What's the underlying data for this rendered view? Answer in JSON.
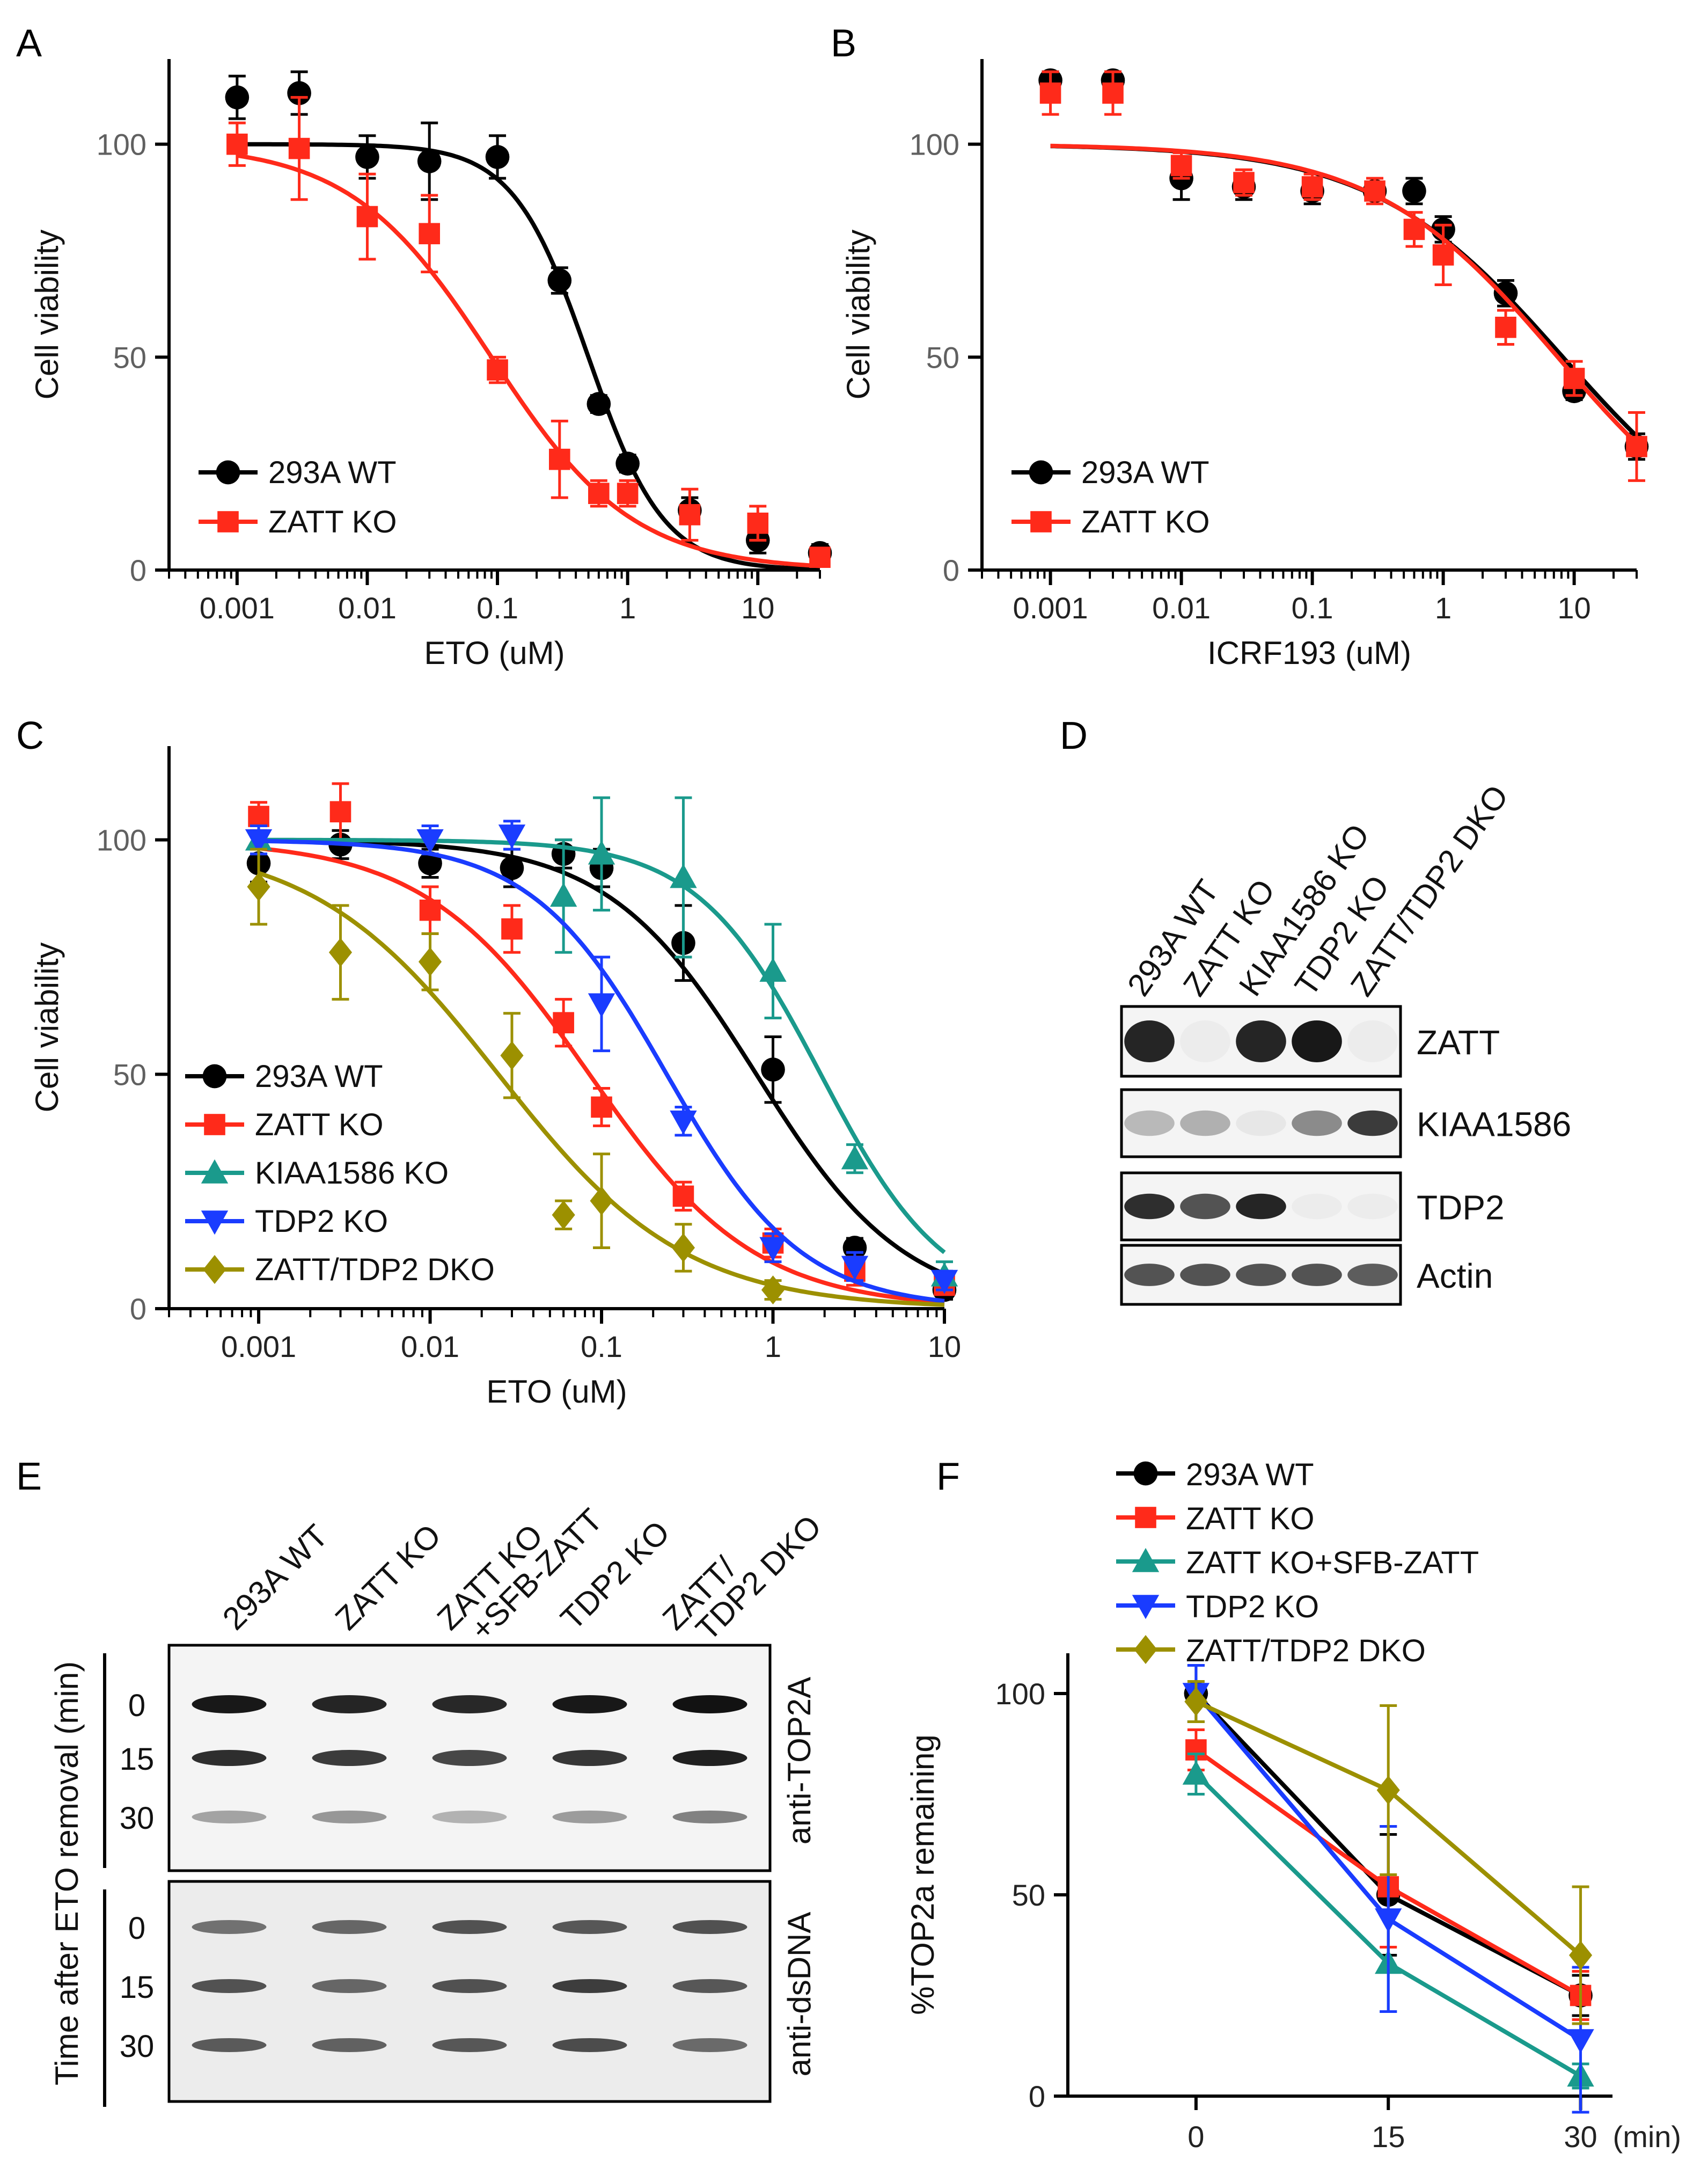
{
  "figure": {
    "panel_letters": {
      "A": "A",
      "B": "B",
      "C": "C",
      "D": "D",
      "E": "E",
      "F": "F"
    }
  },
  "colors": {
    "WT": "#000000",
    "ZATT_KO": "#ff2a1a",
    "KIAA1586_KO": "#1a9a8c",
    "TDP2_KO": "#1a3cff",
    "DKO": "#9c9000",
    "SFB": "#1a9a8c"
  },
  "chart_data": [
    {
      "panel": "A",
      "type": "scatter",
      "xscale": "log",
      "xlim": [
        0.0003,
        30
      ],
      "ylim": [
        0,
        120
      ],
      "xlabel": "ETO (uM)",
      "ylabel": "Cell viability",
      "xticks": [
        0.001,
        0.01,
        0.1,
        1,
        10
      ],
      "xtick_labels": [
        "0.001",
        "0.01",
        "0.1",
        "1",
        "10"
      ],
      "yticks": [
        0,
        50,
        100
      ],
      "ytick_labels": [
        "0",
        "50",
        "100"
      ],
      "legend_position": "bottom-left",
      "series": [
        {
          "name": "293A WT",
          "color_key": "WT",
          "marker": "circle",
          "x": [
            0.001,
            0.003,
            0.01,
            0.03,
            0.1,
            0.3,
            0.6,
            1,
            3,
            10,
            30
          ],
          "y": [
            111,
            112,
            97,
            96,
            97,
            68,
            39,
            25,
            14,
            7,
            4
          ],
          "err": [
            5,
            5,
            5,
            9,
            5,
            3,
            2,
            2,
            3,
            3,
            2
          ],
          "fit": {
            "top": 100,
            "bottom": 0,
            "ic50": 0.5,
            "hill": 1.5
          }
        },
        {
          "name": "ZATT KO",
          "color_key": "ZATT_KO",
          "marker": "square",
          "x": [
            0.001,
            0.003,
            0.01,
            0.03,
            0.1,
            0.3,
            0.6,
            1,
            3,
            10,
            30
          ],
          "y": [
            100,
            99,
            83,
            79,
            47,
            26,
            18,
            18,
            13,
            11,
            3
          ],
          "err": [
            5,
            12,
            10,
            9,
            3,
            9,
            3,
            3,
            6,
            4,
            2
          ],
          "fit": {
            "top": 100,
            "bottom": 0,
            "ic50": 0.09,
            "hill": 0.8
          }
        }
      ]
    },
    {
      "panel": "B",
      "type": "scatter",
      "xscale": "log",
      "xlim": [
        0.0003,
        30
      ],
      "ylim": [
        0,
        120
      ],
      "xlabel": "ICRF193 (uM)",
      "ylabel": "Cell viability",
      "xticks": [
        0.001,
        0.01,
        0.1,
        1,
        10
      ],
      "xtick_labels": [
        "0.001",
        "0.01",
        "0.1",
        "1",
        "10"
      ],
      "yticks": [
        0,
        50,
        100
      ],
      "ytick_labels": [
        "0",
        "50",
        "100"
      ],
      "legend_position": "bottom-left",
      "series": [
        {
          "name": "293A WT",
          "color_key": "WT",
          "marker": "circle",
          "x": [
            0.001,
            0.003,
            0.01,
            0.03,
            0.1,
            0.3,
            0.6,
            1,
            3,
            10,
            30
          ],
          "y": [
            115,
            115,
            92,
            90,
            89,
            89,
            89,
            80,
            65,
            42,
            29
          ],
          "err": [
            2,
            2,
            5,
            3,
            3,
            2,
            3,
            3,
            3,
            2,
            3
          ],
          "fit": {
            "top": 100,
            "bottom": 0,
            "ic50": 8.2,
            "hill": 0.6
          }
        },
        {
          "name": "ZATT KO",
          "color_key": "ZATT_KO",
          "marker": "square",
          "x": [
            0.001,
            0.003,
            0.01,
            0.03,
            0.1,
            0.3,
            0.6,
            1,
            3,
            10,
            30
          ],
          "y": [
            112,
            112,
            95,
            91,
            90,
            89,
            80,
            74,
            57,
            45,
            29
          ],
          "err": [
            5,
            5,
            3,
            3,
            3,
            3,
            4,
            7,
            4,
            4,
            8
          ],
          "fit": {
            "top": 100,
            "bottom": 0,
            "ic50": 7.5,
            "hill": 0.62
          }
        }
      ]
    },
    {
      "panel": "C",
      "type": "scatter",
      "xscale": "log",
      "xlim": [
        0.0003,
        10
      ],
      "ylim": [
        0,
        120
      ],
      "xlabel": "ETO (uM)",
      "ylabel": "Cell viability",
      "xticks": [
        0.001,
        0.01,
        0.1,
        1,
        10
      ],
      "xtick_labels": [
        "0.001",
        "0.01",
        "0.1",
        "1",
        "10"
      ],
      "yticks": [
        0,
        50,
        100
      ],
      "ytick_labels": [
        "0",
        "50",
        "100"
      ],
      "legend_position": "bottom-left",
      "series": [
        {
          "name": "293A WT",
          "color_key": "WT",
          "marker": "circle",
          "x": [
            0.001,
            0.003,
            0.01,
            0.03,
            0.06,
            0.1,
            0.3,
            1,
            3,
            10
          ],
          "y": [
            95,
            99,
            95,
            94,
            97,
            94,
            78,
            51,
            13,
            4
          ],
          "err": [
            4,
            3,
            3,
            4,
            3,
            4,
            8,
            7,
            2,
            2
          ],
          "fit": {
            "top": 100,
            "bottom": 0,
            "ic50": 0.8,
            "hill": 1.0
          }
        },
        {
          "name": "ZATT KO",
          "color_key": "ZATT_KO",
          "marker": "square",
          "x": [
            0.001,
            0.003,
            0.01,
            0.03,
            0.06,
            0.1,
            0.3,
            1,
            3,
            10
          ],
          "y": [
            105,
            106,
            85,
            81,
            61,
            43,
            24,
            14,
            8,
            5
          ],
          "err": [
            3,
            6,
            5,
            5,
            5,
            4,
            3,
            3,
            3,
            2
          ],
          "fit": {
            "top": 100,
            "bottom": 0,
            "ic50": 0.085,
            "hill": 0.9
          }
        },
        {
          "name": "KIAA1586 KO",
          "color_key": "KIAA1586_KO",
          "marker": "triangle-up",
          "x": [
            0.001,
            0.06,
            0.1,
            0.3,
            1,
            3,
            10
          ],
          "y": [
            100,
            88,
            97,
            92,
            72,
            32,
            7
          ],
          "err": [
            3,
            12,
            12,
            17,
            10,
            3,
            3
          ],
          "fit": {
            "top": 100,
            "bottom": 0,
            "ic50": 1.9,
            "hill": 1.2
          }
        },
        {
          "name": "TDP2 KO",
          "color_key": "TDP2_KO",
          "marker": "triangle-down",
          "x": [
            0.001,
            0.01,
            0.03,
            0.1,
            0.3,
            1,
            3,
            10
          ],
          "y": [
            100,
            100,
            101,
            65,
            40,
            13,
            9,
            6
          ],
          "err": [
            3,
            3,
            3,
            10,
            3,
            3,
            3,
            2
          ],
          "fit": {
            "top": 100,
            "bottom": 0,
            "ic50": 0.24,
            "hill": 1.1
          }
        },
        {
          "name": "ZATT/TDP2 DKO",
          "color_key": "DKO",
          "marker": "diamond",
          "x": [
            0.001,
            0.003,
            0.01,
            0.03,
            0.06,
            0.1,
            0.3,
            1
          ],
          "y": [
            90,
            76,
            74,
            54,
            20,
            23,
            13,
            4
          ],
          "err": [
            8,
            10,
            6,
            9,
            3,
            10,
            5,
            2
          ],
          "fit": {
            "top": 100,
            "bottom": 0,
            "ic50": 0.025,
            "hill": 0.8
          }
        }
      ]
    },
    {
      "panel": "F",
      "type": "line",
      "xlim": [
        -10,
        35
      ],
      "ylim": [
        0,
        110
      ],
      "xlabel": "",
      "ylabel": "%TOP2a remaining",
      "xticks": [
        0,
        15,
        30
      ],
      "xtick_labels": [
        "0",
        "15",
        "30"
      ],
      "x_unit": "(min)",
      "yticks": [
        0,
        50,
        100
      ],
      "ytick_labels": [
        "0",
        "50",
        "100"
      ],
      "legend_position": "top",
      "series": [
        {
          "name": "293A WT",
          "color_key": "WT",
          "marker": "circle",
          "x": [
            0,
            15,
            30
          ],
          "y": [
            100,
            50,
            25
          ],
          "err": [
            7,
            15,
            5
          ]
        },
        {
          "name": "ZATT KO",
          "color_key": "ZATT_KO",
          "marker": "square",
          "x": [
            0,
            15,
            30
          ],
          "y": [
            86,
            52,
            25
          ],
          "err": [
            5,
            15,
            6
          ]
        },
        {
          "name": "ZATT KO+SFB-ZATT",
          "color_key": "SFB",
          "marker": "triangle-up",
          "x": [
            0,
            15,
            30
          ],
          "y": [
            80,
            33,
            5
          ],
          "err": [
            5,
            12,
            3
          ]
        },
        {
          "name": "TDP2 KO",
          "color_key": "TDP2_KO",
          "marker": "triangle-down",
          "x": [
            0,
            15,
            30
          ],
          "y": [
            100,
            44,
            14
          ],
          "err": [
            7,
            23,
            18
          ]
        },
        {
          "name": "ZATT/TDP2 DKO",
          "color_key": "DKO",
          "marker": "diamond",
          "x": [
            0,
            15,
            30
          ],
          "y": [
            98,
            76,
            35
          ],
          "err": [
            5,
            21,
            17
          ]
        }
      ]
    }
  ],
  "blot_D": {
    "lanes": [
      "293A WT",
      "ZATT KO",
      "KIAA1586 KO",
      "TDP2 KO",
      "ZATT/TDP2 DKO"
    ],
    "rows": [
      {
        "label": "ZATT",
        "intensities": [
          0.9,
          0.03,
          0.9,
          0.95,
          0.03
        ]
      },
      {
        "label": "KIAA1586",
        "intensities": [
          0.25,
          0.3,
          0.05,
          0.45,
          0.8
        ]
      },
      {
        "label": "TDP2",
        "intensities": [
          0.85,
          0.7,
          0.9,
          0.03,
          0.03
        ]
      },
      {
        "label": "Actin",
        "intensities": [
          0.7,
          0.7,
          0.7,
          0.7,
          0.65
        ]
      }
    ]
  },
  "blot_E": {
    "lanes": [
      "293A WT",
      "ZATT KO",
      "ZATT KO\n+SFB-ZATT",
      "TDP2 KO",
      "ZATT/\nTDP2 DKO"
    ],
    "y_title": "Time after ETO removal (min)",
    "time_labels": [
      "0",
      "15",
      "30"
    ],
    "top_label": "anti-TOP2A",
    "bottom_label": "anti-dsDNA",
    "top_intensities": [
      [
        0.95,
        0.9,
        0.88,
        0.95,
        0.98
      ],
      [
        0.85,
        0.8,
        0.75,
        0.82,
        0.92
      ],
      [
        0.35,
        0.4,
        0.28,
        0.38,
        0.5
      ]
    ],
    "bottom_intensities": [
      [
        0.55,
        0.6,
        0.68,
        0.66,
        0.7
      ],
      [
        0.68,
        0.6,
        0.7,
        0.78,
        0.66
      ],
      [
        0.65,
        0.62,
        0.66,
        0.72,
        0.58
      ]
    ]
  }
}
